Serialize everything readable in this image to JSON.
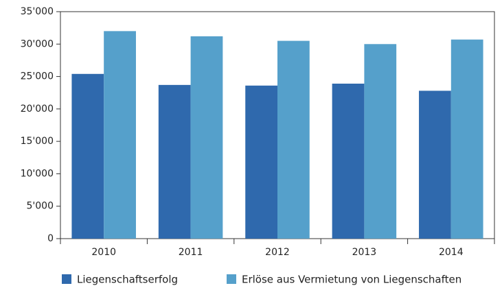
{
  "chart_data": {
    "type": "bar",
    "categories": [
      "2010",
      "2011",
      "2012",
      "2013",
      "2014"
    ],
    "series": [
      {
        "name": "Liegenschaftserfolg",
        "color": "#2f69ad",
        "values": [
          25400,
          23700,
          23600,
          23900,
          22800
        ]
      },
      {
        "name": "Erlöse aus Vermietung von Liegenschaften",
        "color": "#55a0cb",
        "values": [
          32000,
          31200,
          30500,
          30000,
          30700
        ]
      }
    ],
    "ylim": [
      0,
      35000
    ],
    "yticks": [
      0,
      {
        "value": 5000,
        "label": "5'000"
      },
      {
        "value": 10000,
        "label": "10'000"
      },
      {
        "value": 15000,
        "label": "15'000"
      },
      {
        "value": 20000,
        "label": "20'000"
      },
      {
        "value": 25000,
        "label": "25'000"
      },
      {
        "value": 30000,
        "label": "30'000"
      },
      {
        "value": 35000,
        "label": "35'000"
      }
    ],
    "grid": false
  }
}
